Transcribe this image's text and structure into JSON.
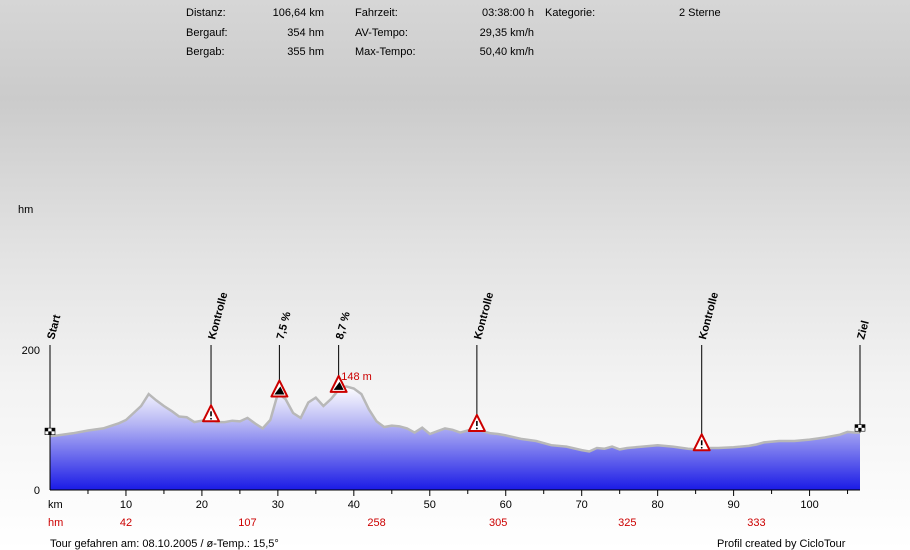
{
  "stats": {
    "distanz_label": "Distanz:",
    "distanz_value": "106,64 km",
    "bergauf_label": "Bergauf:",
    "bergauf_value": "354 hm",
    "bergab_label": "Bergab:",
    "bergab_value": "355 hm",
    "fahrzeit_label": "Fahrzeit:",
    "fahrzeit_value": "03:38:00 h",
    "avtempo_label": "AV-Tempo:",
    "avtempo_value": "29,35 km/h",
    "maxtempo_label": "Max-Tempo:",
    "maxtempo_value": "50,40 km/h",
    "kategorie_label": "Kategorie:",
    "kategorie_value": "2 Sterne"
  },
  "footer": {
    "left": "Tour gefahren am: 08.10.2005 / ø-Temp.: 15,5°",
    "right": "Profil created by CicloTour"
  },
  "colors": {
    "accent_red": "#cc0000",
    "fill_top": "#ffffff",
    "fill_bottom": "#1a1ae6",
    "outline": "#b8b8b8"
  },
  "chart_data": {
    "type": "area",
    "ylabel": "hm",
    "xlabel": "km",
    "xlim": [
      0,
      106.64
    ],
    "ylim": [
      0,
      200
    ],
    "y_ticks": [
      0,
      200
    ],
    "x_ticks": [
      10,
      20,
      30,
      40,
      50,
      60,
      70,
      80,
      90,
      100
    ],
    "cumulative_climb_label": "hm",
    "cumulative_climb": [
      {
        "km": 10,
        "value": "42"
      },
      {
        "km": 26,
        "value": "107"
      },
      {
        "km": 43,
        "value": "258"
      },
      {
        "km": 59,
        "value": "305"
      },
      {
        "km": 76,
        "value": "325"
      },
      {
        "km": 93,
        "value": "333"
      }
    ],
    "profile": [
      [
        0,
        77
      ],
      [
        1,
        78
      ],
      [
        3,
        81
      ],
      [
        5,
        85
      ],
      [
        7,
        88
      ],
      [
        9,
        95
      ],
      [
        10,
        100
      ],
      [
        11,
        110
      ],
      [
        12,
        120
      ],
      [
        13,
        137
      ],
      [
        14,
        128
      ],
      [
        15,
        120
      ],
      [
        16,
        113
      ],
      [
        17,
        105
      ],
      [
        18,
        104
      ],
      [
        19,
        97
      ],
      [
        20,
        99
      ],
      [
        21,
        102
      ],
      [
        22,
        97
      ],
      [
        23,
        97
      ],
      [
        24,
        99
      ],
      [
        25,
        98
      ],
      [
        26,
        103
      ],
      [
        27,
        95
      ],
      [
        28,
        88
      ],
      [
        29,
        100
      ],
      [
        30,
        138
      ],
      [
        31,
        130
      ],
      [
        32,
        110
      ],
      [
        33,
        103
      ],
      [
        34,
        125
      ],
      [
        35,
        132
      ],
      [
        36,
        120
      ],
      [
        37,
        130
      ],
      [
        38,
        143
      ],
      [
        39,
        148
      ],
      [
        40,
        145
      ],
      [
        41,
        137
      ],
      [
        42,
        115
      ],
      [
        43,
        98
      ],
      [
        44,
        90
      ],
      [
        45,
        92
      ],
      [
        46,
        91
      ],
      [
        47,
        88
      ],
      [
        48,
        82
      ],
      [
        49,
        89
      ],
      [
        50,
        80
      ],
      [
        51,
        84
      ],
      [
        52,
        88
      ],
      [
        53,
        86
      ],
      [
        54,
        82
      ],
      [
        55,
        85
      ],
      [
        56,
        88
      ],
      [
        57,
        84
      ],
      [
        58,
        81
      ],
      [
        59,
        80
      ],
      [
        60,
        78
      ],
      [
        62,
        73
      ],
      [
        64,
        70
      ],
      [
        66,
        64
      ],
      [
        68,
        62
      ],
      [
        70,
        57
      ],
      [
        71,
        55
      ],
      [
        72,
        60
      ],
      [
        73,
        59
      ],
      [
        74,
        62
      ],
      [
        75,
        58
      ],
      [
        76,
        60
      ],
      [
        78,
        62
      ],
      [
        80,
        64
      ],
      [
        82,
        62
      ],
      [
        84,
        59
      ],
      [
        85,
        58
      ],
      [
        86,
        60
      ],
      [
        88,
        60
      ],
      [
        90,
        61
      ],
      [
        92,
        63
      ],
      [
        93,
        65
      ],
      [
        94,
        68
      ],
      [
        96,
        70
      ],
      [
        98,
        70
      ],
      [
        100,
        72
      ],
      [
        102,
        75
      ],
      [
        104,
        79
      ],
      [
        105,
        83
      ],
      [
        106,
        82
      ],
      [
        106.64,
        82
      ]
    ],
    "markers": [
      {
        "km": 0,
        "label": "Start",
        "kind": "flag"
      },
      {
        "km": 21.2,
        "label": "Kontrolle",
        "kind": "warning"
      },
      {
        "km": 30.2,
        "label": "7,5 %",
        "kind": "climb"
      },
      {
        "km": 38.0,
        "label": "8,7 %",
        "kind": "climb"
      },
      {
        "km": 56.2,
        "label": "Kontrolle",
        "kind": "warning"
      },
      {
        "km": 85.8,
        "label": "Kontrolle",
        "kind": "warning"
      },
      {
        "km": 106.64,
        "label": "Ziel",
        "kind": "flag"
      }
    ],
    "annotations": [
      {
        "km": 39,
        "value": "148 m"
      }
    ]
  }
}
